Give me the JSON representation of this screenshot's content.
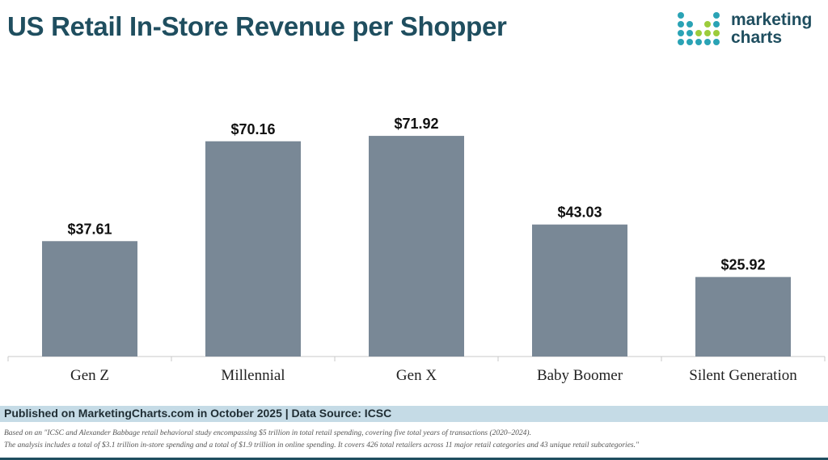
{
  "title": "US Retail In-Store Revenue per Shopper",
  "logo": {
    "line1": "marketing",
    "line2": "charts"
  },
  "colors": {
    "bar": "#798896",
    "title": "#1f4e5f",
    "footer_bg": "#c5dbe6"
  },
  "chart_data": {
    "type": "bar",
    "title": "US Retail In-Store Revenue per Shopper",
    "categories": [
      "Gen Z",
      "Millennial",
      "Gen X",
      "Baby Boomer",
      "Silent Generation"
    ],
    "values": [
      37.61,
      70.16,
      71.92,
      43.03,
      25.92
    ],
    "value_labels": [
      "$37.61",
      "$70.16",
      "$71.92",
      "$43.03",
      "$25.92"
    ],
    "xlabel": "",
    "ylabel": "",
    "ylim": [
      0,
      78
    ],
    "grid": false
  },
  "footer": {
    "published": "Published on MarketingCharts.com in October 2025 | Data Source: ICSC",
    "note1": "Based on an \"ICSC and Alexander Babbage retail behavioral study encompassing $5 trillion in total retail spending, covering five total years of transactions (2020–2024).",
    "note2": "The analysis includes a total of $3.1 trillion in-store spending and a total of $1.9 trillion in online spending. It covers 426 total retailers across 11 major retail categories and 43 unique retail subcategories.\""
  }
}
